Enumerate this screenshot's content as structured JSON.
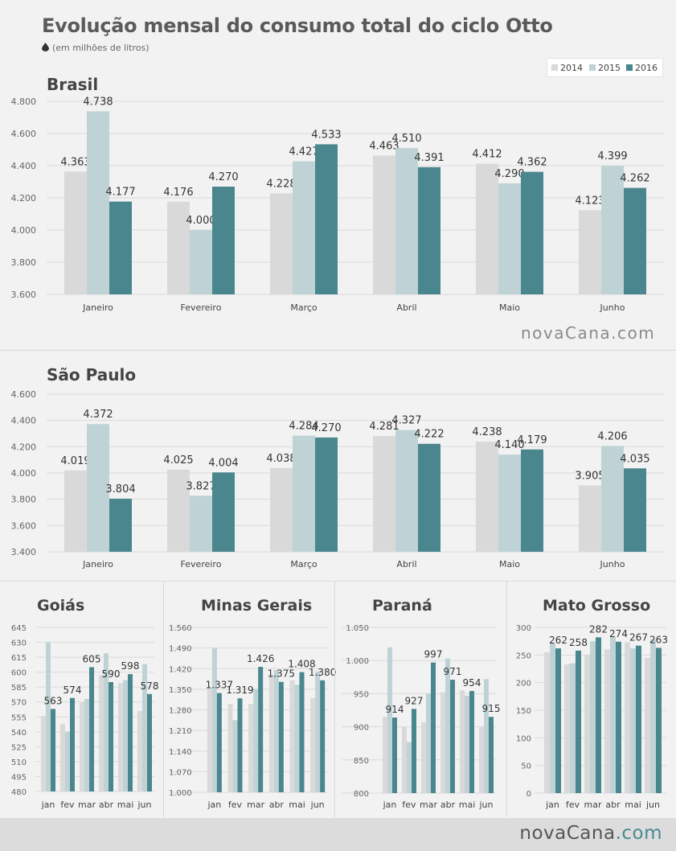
{
  "header": {
    "title": "Evolução mensal do consumo total do ciclo Otto",
    "subtitle": "(em milhões de litros)",
    "icon": "drop-icon"
  },
  "legend": {
    "items": [
      {
        "label": "2014",
        "color": "#d9d9d9"
      },
      {
        "label": "2015",
        "color": "#bfd3d6"
      },
      {
        "label": "2016",
        "color": "#4a868d"
      }
    ]
  },
  "colors": {
    "s2014": "#d9d9d9",
    "s2015": "#bfd3d6",
    "s2016": "#4a868d",
    "grid": "#dadada"
  },
  "branding": {
    "mid_logo": "novaCana.com",
    "footer_logo_main": "novaCana",
    "footer_logo_tld": ".com"
  },
  "chart_data": [
    {
      "type": "bar",
      "title": "Brasil",
      "categories": [
        "Janeiro",
        "Fevereiro",
        "Março",
        "Abril",
        "Maio",
        "Junho"
      ],
      "ylim": [
        3600,
        4800
      ],
      "ytick_labels": [
        "3.600",
        "3.800",
        "4.000",
        "4.200",
        "4.400",
        "4.600",
        "4.800"
      ],
      "grid": true,
      "series": [
        {
          "name": "2014",
          "values": [
            4363,
            4176,
            4228,
            4463,
            4412,
            4123
          ],
          "labels": [
            "4.363",
            "4.176",
            "4.228",
            "4.463",
            "4.412",
            "4.123"
          ]
        },
        {
          "name": "2015",
          "values": [
            4738,
            4000,
            4427,
            4510,
            4290,
            4399
          ],
          "labels": [
            "4.738",
            "4.000",
            "4.427",
            "4.510",
            "4.290",
            "4.399"
          ]
        },
        {
          "name": "2016",
          "values": [
            4177,
            4270,
            4533,
            4391,
            4362,
            4262
          ],
          "labels": [
            "4.177",
            "4.270",
            "4.533",
            "4.391",
            "4.362",
            "4.262"
          ]
        }
      ]
    },
    {
      "type": "bar",
      "title": "São Paulo",
      "categories": [
        "Janeiro",
        "Fevereiro",
        "Março",
        "Abril",
        "Maio",
        "Junho"
      ],
      "ylim": [
        3400,
        4600
      ],
      "ytick_labels": [
        "3.400",
        "3.600",
        "3.800",
        "4.000",
        "4.200",
        "4.400",
        "4.600"
      ],
      "grid": true,
      "series": [
        {
          "name": "2014",
          "values": [
            4019,
            4025,
            4038,
            4281,
            4238,
            3905
          ],
          "labels": [
            "4.019",
            "4.025",
            "4.038",
            "4.281",
            "4.238",
            "3.905"
          ]
        },
        {
          "name": "2015",
          "values": [
            4372,
            3827,
            4284,
            4327,
            4140,
            4206
          ],
          "labels": [
            "4.372",
            "3.827",
            "4.284",
            "4.327",
            "4.140",
            "4.206"
          ]
        },
        {
          "name": "2016",
          "values": [
            3804,
            4004,
            4270,
            4222,
            4179,
            4035
          ],
          "labels": [
            "3.804",
            "4.004",
            "4.270",
            "4.222",
            "4.179",
            "4.035"
          ]
        }
      ]
    },
    {
      "type": "bar",
      "title": "Goiás",
      "categories": [
        "jan",
        "fev",
        "mar",
        "abr",
        "mai",
        "jun"
      ],
      "ylim": [
        480,
        645
      ],
      "ytick_labels": [
        "480",
        "495",
        "510",
        "525",
        "540",
        "555",
        "570",
        "585",
        "600",
        "615",
        "630",
        "645"
      ],
      "grid": true,
      "series": [
        {
          "name": "2014",
          "values": [
            556,
            548,
            570,
            597,
            589,
            561
          ]
        },
        {
          "name": "2015",
          "values": [
            630,
            540,
            573,
            619,
            592,
            608
          ]
        },
        {
          "name": "2016",
          "values": [
            563,
            574,
            605,
            590,
            598,
            578
          ],
          "labels": [
            "563",
            "574",
            "605",
            "590",
            "598",
            "578"
          ]
        }
      ]
    },
    {
      "type": "bar",
      "title": "Minas Gerais",
      "categories": [
        "jan",
        "fev",
        "mar",
        "abr",
        "mai",
        "jun"
      ],
      "ylim": [
        1000,
        1560
      ],
      "ytick_labels": [
        "1.000",
        "1.070",
        "1.140",
        "1.210",
        "1.280",
        "1.350",
        "1.420",
        "1.490",
        "1.560"
      ],
      "grid": true,
      "series": [
        {
          "name": "2014",
          "values": [
            1355,
            1300,
            1300,
            1400,
            1380,
            1320
          ]
        },
        {
          "name": "2015",
          "values": [
            1490,
            1245,
            1350,
            1415,
            1365,
            1410
          ]
        },
        {
          "name": "2016",
          "values": [
            1337,
            1319,
            1426,
            1375,
            1408,
            1380
          ],
          "labels": [
            "1.337",
            "1.319",
            "1.426",
            "1.375",
            "1.408",
            "1.380"
          ]
        }
      ]
    },
    {
      "type": "bar",
      "title": "Paraná",
      "categories": [
        "jan",
        "fev",
        "mar",
        "abr",
        "mai",
        "jun"
      ],
      "ylim": [
        800,
        1050
      ],
      "ytick_labels": [
        "800",
        "850",
        "900",
        "950",
        "1.000",
        "1.050"
      ],
      "grid": true,
      "series": [
        {
          "name": "2014",
          "values": [
            915,
            900,
            907,
            952,
            955,
            900
          ]
        },
        {
          "name": "2015",
          "values": [
            1020,
            877,
            950,
            1003,
            947,
            972
          ]
        },
        {
          "name": "2016",
          "values": [
            914,
            927,
            997,
            971,
            954,
            915
          ],
          "labels": [
            "914",
            "927",
            "997",
            "971",
            "954",
            "915"
          ]
        }
      ]
    },
    {
      "type": "bar",
      "title": "Mato Grosso",
      "categories": [
        "jan",
        "fev",
        "mar",
        "abr",
        "mai",
        "jun"
      ],
      "ylim": [
        0,
        300
      ],
      "ytick_labels": [
        "0",
        "50",
        "100",
        "150",
        "200",
        "250",
        "300"
      ],
      "grid": true,
      "series": [
        {
          "name": "2014",
          "values": [
            255,
            233,
            250,
            260,
            273,
            245
          ]
        },
        {
          "name": "2015",
          "values": [
            272,
            235,
            275,
            284,
            262,
            278
          ]
        },
        {
          "name": "2016",
          "values": [
            262,
            258,
            282,
            274,
            267,
            263
          ],
          "labels": [
            "262",
            "258",
            "282",
            "274",
            "267",
            "263"
          ]
        }
      ]
    }
  ]
}
